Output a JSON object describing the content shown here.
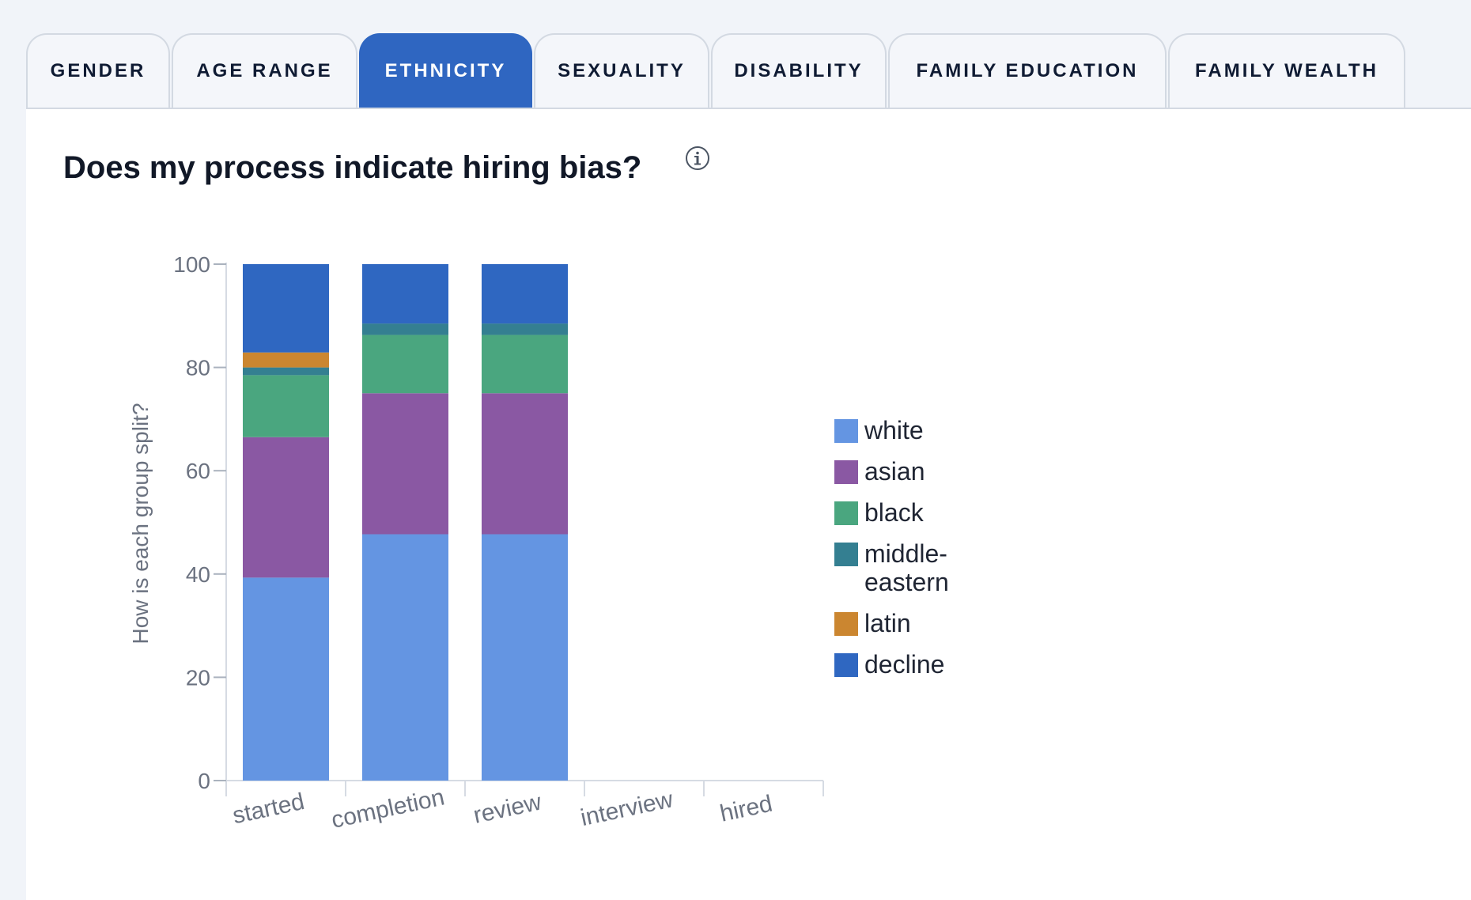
{
  "tabs": [
    {
      "label": "GENDER",
      "active": false
    },
    {
      "label": "AGE RANGE",
      "active": false
    },
    {
      "label": "ETHNICITY",
      "active": true
    },
    {
      "label": "SEXUALITY",
      "active": false
    },
    {
      "label": "DISABILITY",
      "active": false
    },
    {
      "label": "FAMILY EDUCATION",
      "active": false
    },
    {
      "label": "FAMILY WEALTH",
      "active": false
    }
  ],
  "header": {
    "title": "Does my process indicate hiring bias?",
    "info_icon": "info-circle-icon"
  },
  "chart_data": {
    "type": "bar",
    "stacked": true,
    "title": "",
    "xlabel": "",
    "ylabel": "How is each group split?",
    "ylim": [
      0,
      100
    ],
    "yticks": [
      0,
      20,
      40,
      60,
      80,
      100
    ],
    "categories": [
      "started",
      "completion",
      "review",
      "interview",
      "hired"
    ],
    "series": [
      {
        "name": "white",
        "color": "#6495e2",
        "values": [
          39.3,
          47.7,
          47.7,
          0,
          0
        ]
      },
      {
        "name": "asian",
        "color": "#8a58a3",
        "values": [
          27.2,
          27.3,
          27.3,
          0,
          0
        ]
      },
      {
        "name": "black",
        "color": "#4aa67f",
        "values": [
          12.0,
          11.3,
          11.3,
          0,
          0
        ]
      },
      {
        "name": "middle-eastern",
        "color": "#347f91",
        "values": [
          1.5,
          2.2,
          2.2,
          0,
          0
        ]
      },
      {
        "name": "latin",
        "color": "#cb8630",
        "values": [
          2.9,
          0,
          0,
          0,
          0
        ]
      },
      {
        "name": "decline",
        "color": "#2f67c1",
        "values": [
          17.1,
          11.5,
          11.5,
          0,
          0
        ]
      }
    ],
    "legend_position": "right"
  }
}
